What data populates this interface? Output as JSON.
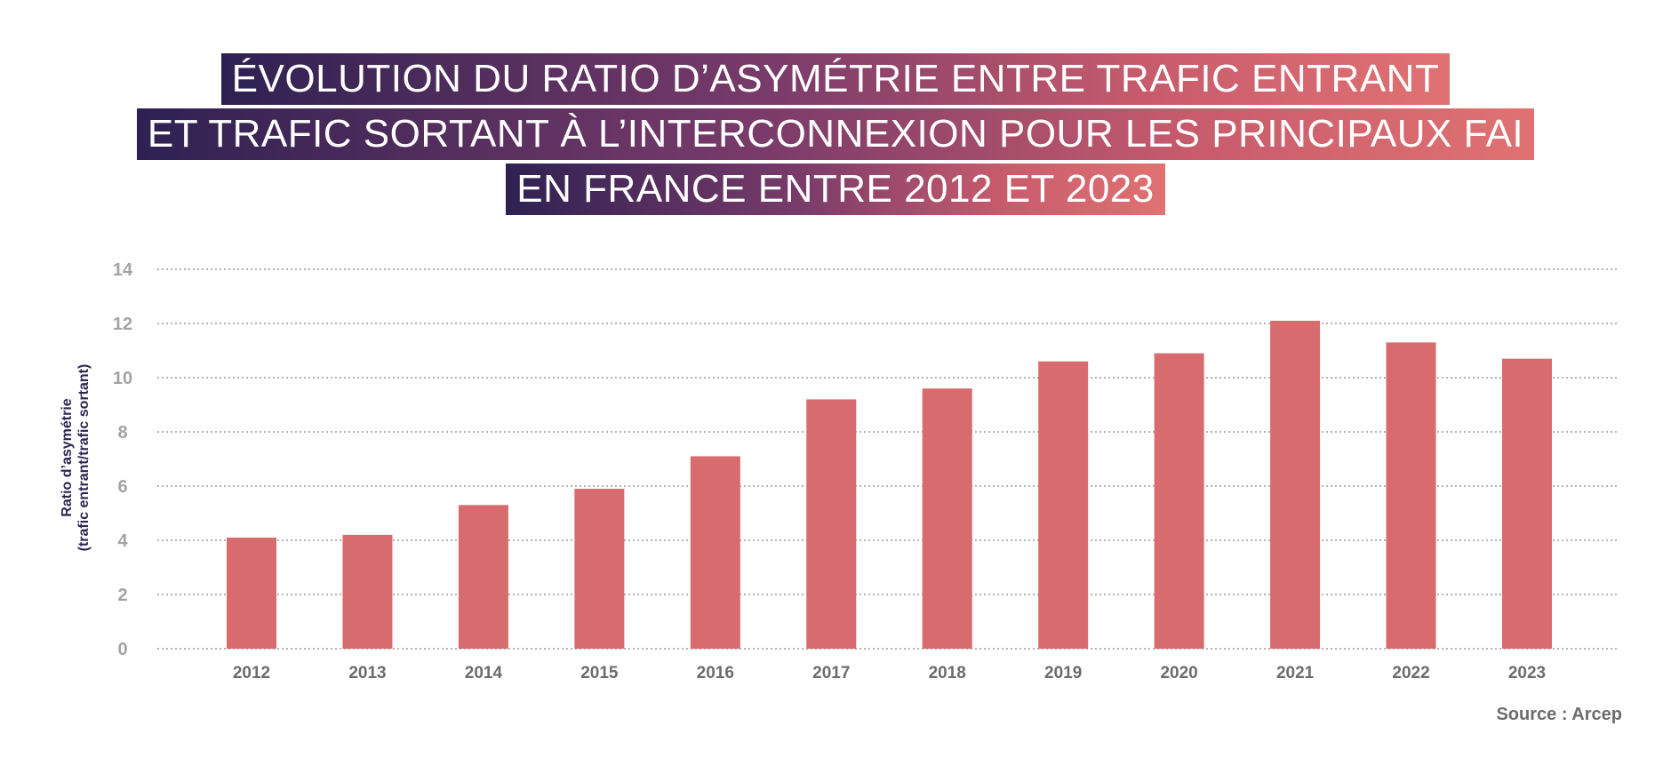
{
  "title_lines": [
    "ÉVOLUTION DU RATIO D’ASYMÉTRIE ENTRE TRAFIC ENTRANT",
    "ET TRAFIC SORTANT À L’INTERCONNEXION POUR LES PRINCIPAUX FAI",
    "EN FRANCE ENTRE 2012 ET 2023"
  ],
  "source": "Source : Arcep",
  "colors": {
    "bar": "#d86b6d",
    "grid": "#9a9a9a",
    "title_gradient_start": "#2e2152",
    "title_gradient_end": "#e07272"
  },
  "chart_data": {
    "type": "bar",
    "title": "ÉVOLUTION DU RATIO D’ASYMÉTRIE ENTRE TRAFIC ENTRANT ET TRAFIC SORTANT À L’INTERCONNEXION POUR LES PRINCIPAUX FAI EN FRANCE ENTRE 2012 ET 2023",
    "ylabel_lines": [
      "Ratio d’asymétrie",
      "(trafic entrant/trafic sortant)"
    ],
    "xlabel": "",
    "categories": [
      "2012",
      "2013",
      "2014",
      "2015",
      "2016",
      "2017",
      "2018",
      "2019",
      "2020",
      "2021",
      "2022",
      "2023"
    ],
    "values": [
      4.1,
      4.2,
      5.3,
      5.9,
      7.1,
      9.2,
      9.6,
      10.6,
      10.9,
      12.1,
      11.3,
      10.7
    ],
    "ylim": [
      0,
      14
    ],
    "yticks": [
      "0",
      "2",
      "4",
      "6",
      "8",
      "10",
      "12",
      "14"
    ],
    "grid": "dotted horizontal",
    "legend": "none"
  }
}
